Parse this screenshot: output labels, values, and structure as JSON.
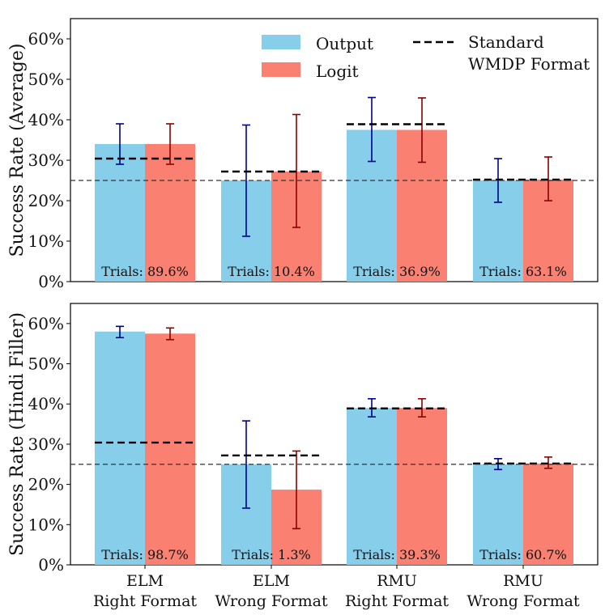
{
  "chart_data": [
    {
      "type": "bar",
      "ylabel": "Success Rate (Average)",
      "ylim": [
        0,
        65
      ],
      "yticks": [
        "0%",
        "10%",
        "20%",
        "30%",
        "40%",
        "50%",
        "60%"
      ],
      "reference_line": 25,
      "series": [
        {
          "name": "Output",
          "color": "#87ceeb",
          "err_color": "#00008b",
          "values": [
            34.0,
            25.0,
            37.5,
            25.0
          ],
          "err_low": [
            29.0,
            11.2,
            29.7,
            19.6
          ],
          "err_high": [
            39.0,
            38.7,
            45.5,
            30.4
          ]
        },
        {
          "name": "Logit",
          "color": "#fa8072",
          "err_color": "#8b0000",
          "values": [
            34.0,
            27.2,
            37.5,
            25.2
          ],
          "err_low": [
            29.0,
            13.4,
            29.5,
            20.0
          ],
          "err_high": [
            39.0,
            41.3,
            45.4,
            30.8
          ]
        }
      ],
      "standard_wmdp": [
        30.4,
        27.2,
        38.9,
        25.2
      ],
      "trials": [
        "Trials: 89.6%",
        "Trials: 10.4%",
        "Trials: 36.9%",
        "Trials: 63.1%"
      ],
      "legend": {
        "output": "Output",
        "logit": "Logit",
        "standard_line1": "Standard",
        "standard_line2": "WMDP Format"
      }
    },
    {
      "type": "bar",
      "ylabel": "Success Rate (Hindi Filler)",
      "ylim": [
        0,
        65
      ],
      "yticks": [
        "0%",
        "10%",
        "20%",
        "30%",
        "40%",
        "50%",
        "60%"
      ],
      "reference_line": 25,
      "categories_line1": [
        "ELM",
        "ELM",
        "RMU",
        "RMU"
      ],
      "categories_line2": [
        "Right Format",
        "Wrong Format",
        "Right Format",
        "Wrong Format"
      ],
      "series": [
        {
          "name": "Output",
          "color": "#87ceeb",
          "err_color": "#00008b",
          "values": [
            58.0,
            25.0,
            39.0,
            25.0
          ],
          "err_low": [
            56.5,
            14.1,
            36.8,
            23.7
          ],
          "err_high": [
            59.3,
            35.8,
            41.3,
            26.4
          ]
        },
        {
          "name": "Logit",
          "color": "#fa8072",
          "err_color": "#8b0000",
          "values": [
            57.5,
            18.7,
            39.0,
            25.2
          ],
          "err_low": [
            56.0,
            9.0,
            36.8,
            24.0
          ],
          "err_high": [
            58.9,
            28.3,
            41.3,
            26.8
          ]
        }
      ],
      "standard_wmdp": [
        30.4,
        27.2,
        38.9,
        25.2
      ],
      "trials": [
        "Trials: 98.7%",
        "Trials: 1.3%",
        "Trials: 39.3%",
        "Trials: 60.7%"
      ]
    }
  ]
}
